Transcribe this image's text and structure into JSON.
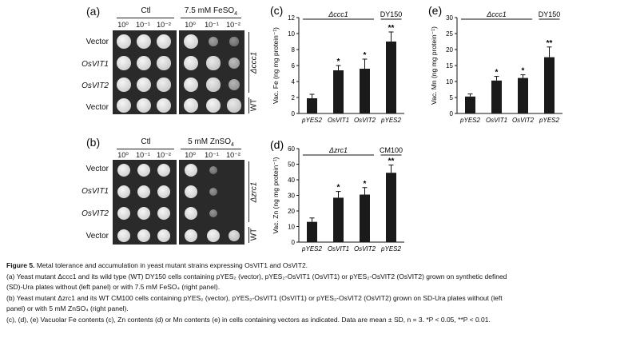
{
  "panels": {
    "a": {
      "letter": "(a)",
      "left_header": "Ctl",
      "right_header": "7.5 mM FeSO",
      "right_header_sub": "4",
      "dilutions": [
        "10⁰",
        "10⁻¹",
        "10⁻²"
      ],
      "rows": [
        "Vector",
        "OsVIT1",
        "OsVIT2",
        "Vector"
      ],
      "strain_mutant": "Δccc1",
      "strain_wt": "WT"
    },
    "b": {
      "letter": "(b)",
      "left_header": "Ctl",
      "right_header": "5 mM ZnSO",
      "right_header_sub": "4",
      "dilutions": [
        "10⁰",
        "10⁻¹",
        "10⁻²"
      ],
      "rows": [
        "Vector",
        "OsVIT1",
        "OsVIT2",
        "Vector"
      ],
      "strain_mutant": "Δzrc1",
      "strain_wt": "WT"
    }
  },
  "chart_data": [
    {
      "letter": "(c)",
      "type": "bar",
      "categories": [
        "pYES2",
        "OsVIT1",
        "OsVIT2",
        "pYES2"
      ],
      "values": [
        1.9,
        5.4,
        5.6,
        9.0
      ],
      "errors": [
        0.5,
        0.6,
        1.2,
        1.2
      ],
      "significance": [
        "",
        "*",
        "*",
        "**"
      ],
      "ylabel": "Vac. Fe (ng mg protein⁻¹)",
      "ylim": [
        0,
        12
      ],
      "yticks": [
        "0",
        "2",
        "4",
        "6",
        "8",
        "10",
        "12"
      ],
      "group_label": "Δccc1",
      "wt_label": "DY150"
    },
    {
      "letter": "(d)",
      "type": "bar",
      "categories": [
        "pYES2",
        "OsVIT1",
        "OsVIT2",
        "pYES2"
      ],
      "values": [
        13,
        28.5,
        30.5,
        44.5
      ],
      "errors": [
        2.5,
        4,
        4.5,
        5
      ],
      "significance": [
        "",
        "*",
        "*",
        "**"
      ],
      "ylabel": "Vac. Zn (ng mg protein⁻¹)",
      "ylim": [
        0,
        60
      ],
      "yticks": [
        "0",
        "10",
        "20",
        "30",
        "40",
        "50",
        "60"
      ],
      "group_label": "Δzrc1",
      "wt_label": "CM100"
    },
    {
      "letter": "(e)",
      "type": "bar",
      "categories": [
        "pYES2",
        "OsVIT1",
        "OsVIT2",
        "pYES2"
      ],
      "values": [
        5.3,
        10.3,
        11.1,
        17.6
      ],
      "errors": [
        0.8,
        1.3,
        1.0,
        3.2
      ],
      "significance": [
        "",
        "*",
        "*",
        "**"
      ],
      "ylabel": "Vac. Mn (ng mg protein⁻¹)",
      "ylim": [
        0,
        30
      ],
      "yticks": [
        "0",
        "5",
        "10",
        "15",
        "20",
        "25",
        "30"
      ],
      "group_label": "Δccc1",
      "wt_label": "DY150"
    }
  ],
  "caption": {
    "title": "Figure 5.",
    "title_text": "Metal tolerance and accumulation in yeast mutant strains expressing OsVIT1 and OsVIT2.",
    "line_a1": "(a) Yeast mutant Δccc1 and its wild type (WT) DY150 cells containing pYES₂ (vector), pYES₂-OsVIT1 (OsVIT1) or pYES₂-OsVIT2 (OsVIT2) grown on synthetic defined",
    "line_a2": "(SD)-Ura plates without (left panel) or with 7.5 mM FeSO₄ (right panel).",
    "line_b1": "(b) Yeast mutant Δzrc1 and its WT CM100 cells containing pYES₂ (vector), pYES₂-OsVIT1 (OsVIT1) or pYES₂-OsVIT2 (OsVIT2) grown on SD-Ura plates without (left",
    "line_b2": "panel) or with 5 mM ZnSO₄ (right panel).",
    "line_c": "(c), (d), (e) Vacuolar Fe contents (c), Zn contents (d) or Mn contents (e) in cells containing vectors as indicated. Data are mean ± SD, n = 3. *P < 0.05, **P < 0.01."
  }
}
